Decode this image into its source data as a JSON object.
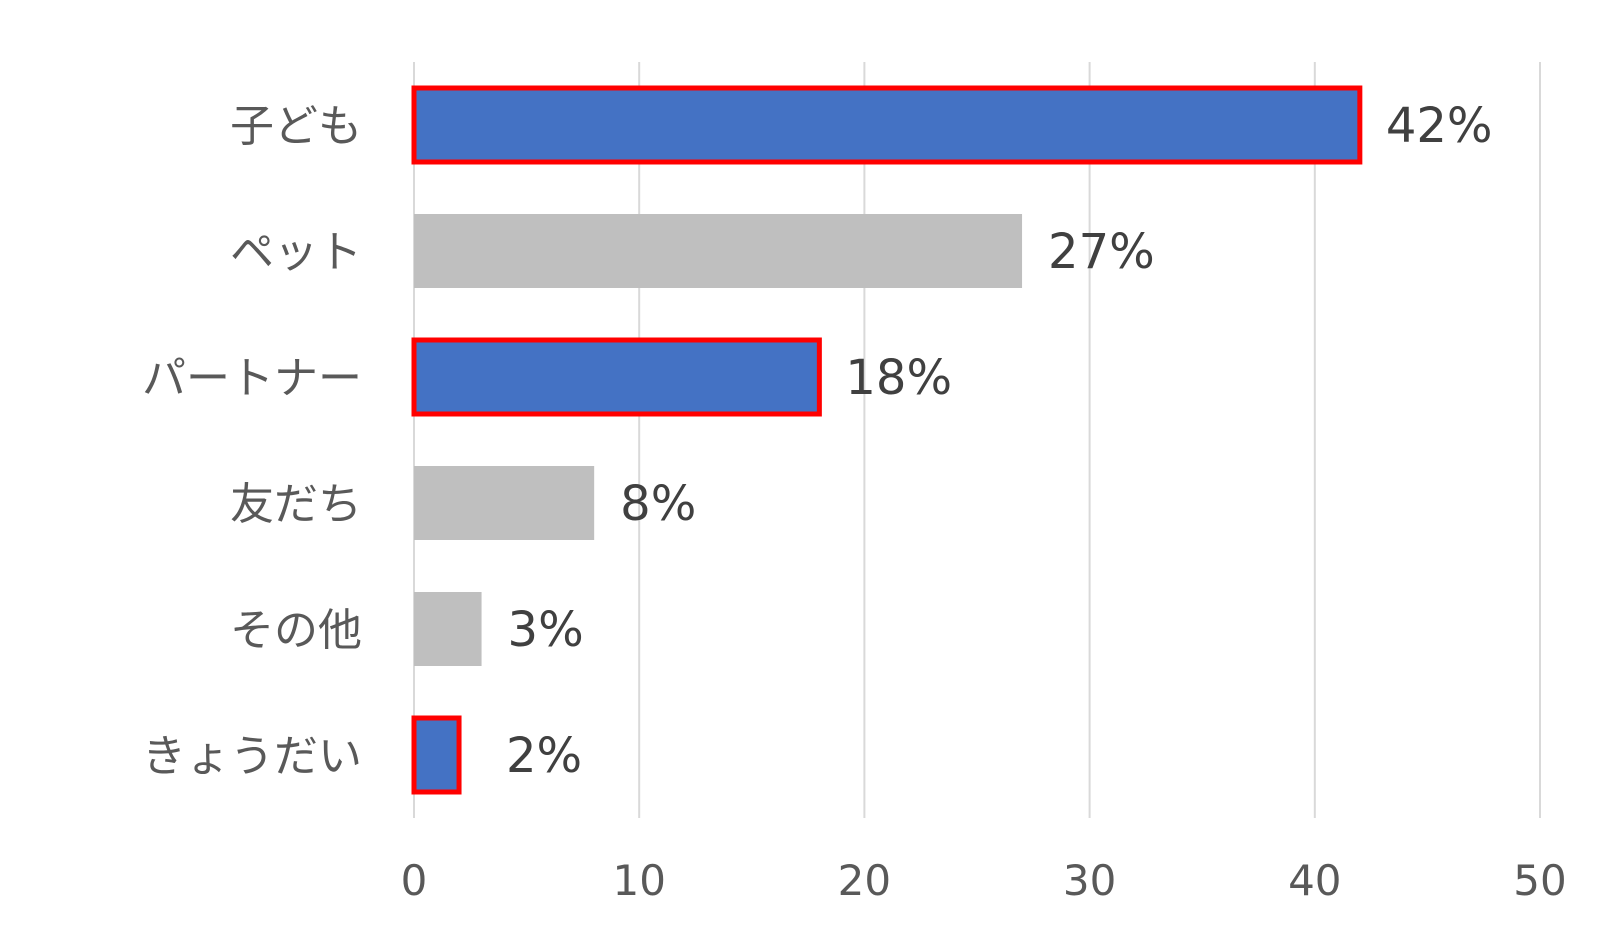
{
  "chart_data": {
    "type": "bar",
    "orientation": "horizontal",
    "categories": [
      "子ども",
      "ペット",
      "パートナー",
      "友だち",
      "その他",
      "きょうだい"
    ],
    "values": [
      42,
      27,
      18,
      8,
      3,
      2
    ],
    "value_labels": [
      "42%",
      "27%",
      "18%",
      "8%",
      "3%",
      "2%"
    ],
    "highlighted": [
      true,
      false,
      true,
      false,
      false,
      true
    ],
    "xlim": [
      0,
      50
    ],
    "xticks": [
      0,
      10,
      20,
      30,
      40,
      50
    ],
    "xtick_labels": [
      "0",
      "10",
      "20",
      "30",
      "40",
      "50"
    ],
    "grid": "vertical",
    "title": "",
    "xlabel": "",
    "ylabel": "",
    "colors": {
      "highlight_fill": "#4472C4",
      "highlight_border": "#FF0000",
      "default_fill": "#BFBFBF",
      "grid": "#D9D9D9"
    }
  }
}
